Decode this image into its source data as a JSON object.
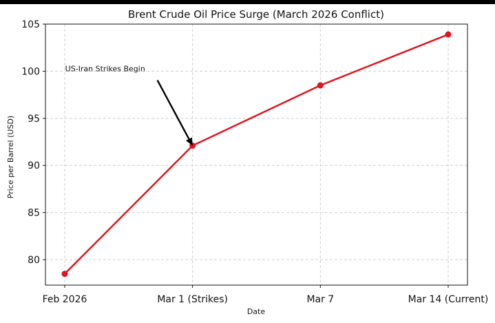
{
  "chart_data": {
    "type": "line",
    "title": "Brent Crude Oil Price Surge (March 2026 Conflict)",
    "xlabel": "Date",
    "ylabel": "Price per Barrel (USD)",
    "categories": [
      "Feb 2026",
      "Mar 1 (Strikes)",
      "Mar 7",
      "Mar 14 (Current)"
    ],
    "series": [
      {
        "values": [
          78.5,
          92.1,
          98.5,
          103.9
        ],
        "color": "#e0141e"
      }
    ],
    "ylim": [
      77.3,
      105
    ],
    "yticks": [
      80,
      85,
      90,
      95,
      100,
      105
    ],
    "grid": true,
    "grid_style": "dashed",
    "annotations": [
      {
        "text": "US-Iran Strikes Begin",
        "target_category": "Mar 1 (Strikes)",
        "target_value": 92.1
      }
    ]
  }
}
